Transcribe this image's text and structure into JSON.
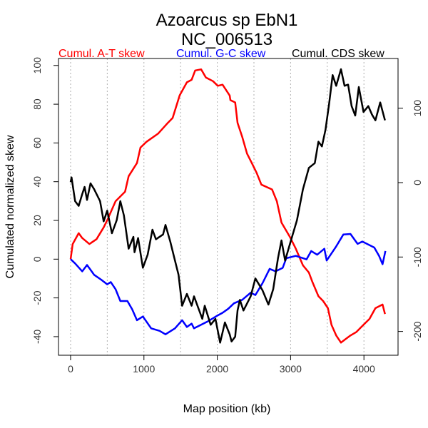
{
  "chart_data": {
    "type": "line",
    "title": "Azoarcus sp EbN1",
    "subtitle": "NC_006513",
    "xlabel": "Map position (kb)",
    "ylabel": "Cumulated normalized skew",
    "xlim": [
      -165,
      4465
    ],
    "ylim": [
      -49.6,
      103.6
    ],
    "ylim_right": [
      -232,
      166.8
    ],
    "x_ticks": [
      0,
      1000,
      2000,
      3000,
      4000
    ],
    "y_ticks": [
      -40,
      -20,
      0,
      20,
      40,
      60,
      80,
      100
    ],
    "y_ticks_right": [
      -200,
      -100,
      0,
      100
    ],
    "grid_x": [
      0,
      500,
      1000,
      1500,
      2000,
      2500,
      3000,
      3500,
      4000
    ],
    "legend_placement": "top",
    "series": [
      {
        "name": "Cumul. A-T skew",
        "color": "#ff0000",
        "axis": "left",
        "x": [
          0,
          29,
          110,
          159,
          256,
          353,
          451,
          499,
          613,
          743,
          791,
          905,
          953,
          1034,
          1196,
          1326,
          1391,
          1488,
          1586,
          1650,
          1699,
          1780,
          1845,
          1942,
          2007,
          2072,
          2169,
          2179,
          2244,
          2276,
          2341,
          2406,
          2471,
          2536,
          2601,
          2747,
          2812,
          2876,
          2990,
          3071,
          3168,
          3249,
          3298,
          3379,
          3444,
          3509,
          3557,
          3622,
          3687,
          3751,
          3816,
          3897,
          3978,
          4076,
          4157,
          4254,
          4287
        ],
        "y": [
          0,
          7.8,
          13.4,
          10.9,
          7.8,
          10.3,
          16.4,
          20.1,
          29.9,
          34.8,
          42.8,
          49.6,
          57.6,
          60.6,
          64.9,
          70.4,
          72.9,
          84.6,
          91.3,
          92.6,
          97.4,
          98.0,
          93.8,
          91.9,
          89.5,
          90.1,
          84.5,
          82.1,
          80.9,
          70.4,
          63.1,
          54.5,
          49.6,
          44.6,
          38.5,
          36.0,
          29.9,
          18.9,
          11.5,
          5.4,
          -3.2,
          -6.9,
          -11.8,
          -19.1,
          -21.6,
          -25.3,
          -33.9,
          -39.4,
          -43.1,
          -41.2,
          -39.4,
          -37.6,
          -34.5,
          -30.8,
          -25.3,
          -23.4,
          -28.3
        ]
      },
      {
        "name": "Cumul. G-C skew",
        "color": "#0000ff",
        "axis": "left",
        "x": [
          0,
          62,
          159,
          224,
          321,
          418,
          499,
          548,
          613,
          678,
          775,
          840,
          905,
          986,
          1099,
          1213,
          1294,
          1423,
          1521,
          1586,
          1650,
          1683,
          1877,
          2007,
          2072,
          2150,
          2228,
          2341,
          2455,
          2520,
          2617,
          2714,
          2795,
          2892,
          2941,
          3071,
          3217,
          3281,
          3362,
          3460,
          3492,
          3622,
          3719,
          3816,
          3913,
          3978,
          4141,
          4206,
          4254,
          4293
        ],
        "y": [
          0,
          -2.2,
          -6.3,
          -3.0,
          -8.1,
          -10.6,
          -13.0,
          -11.8,
          -15.5,
          -21.6,
          -21.6,
          -25.9,
          -31.5,
          -29.6,
          -35.7,
          -37.0,
          -38.8,
          -35.7,
          -31.5,
          -35.0,
          -33.3,
          -35.7,
          -32.0,
          -29.0,
          -27.7,
          -25.6,
          -22.8,
          -21.0,
          -17.3,
          -18.5,
          -12.4,
          -5.0,
          -6.3,
          -4.5,
          0.5,
          1.7,
          -0.1,
          4.2,
          2.3,
          5.4,
          -0.7,
          6.6,
          12.7,
          13.0,
          7.9,
          9.1,
          6.0,
          1.7,
          -2.6,
          4.2
        ]
      },
      {
        "name": "Cumul. CDS skew",
        "color": "#000000",
        "axis": "right",
        "x": [
          0,
          13,
          62,
          110,
          159,
          191,
          224,
          272,
          321,
          402,
          451,
          499,
          564,
          629,
          678,
          727,
          791,
          856,
          872,
          921,
          986,
          1051,
          1116,
          1164,
          1261,
          1294,
          1359,
          1423,
          1472,
          1521,
          1586,
          1650,
          1683,
          1796,
          1829,
          1910,
          1975,
          2039,
          2104,
          2169,
          2195,
          2244,
          2276,
          2309,
          2357,
          2455,
          2520,
          2617,
          2698,
          2763,
          2828,
          2876,
          2925,
          2990,
          3087,
          3168,
          3249,
          3330,
          3379,
          3427,
          3476,
          3525,
          3573,
          3622,
          3687,
          3735,
          3784,
          3832,
          3881,
          3930,
          3994,
          4059,
          4108,
          4157,
          4222,
          4287
        ],
        "y": [
          0.6,
          7.0,
          -24.9,
          -31.3,
          -15.3,
          -5.8,
          -23.3,
          -1.0,
          -8.9,
          -24.9,
          -52.1,
          -37.7,
          -68.1,
          -50.5,
          -24.9,
          -44.1,
          -88.8,
          -72.9,
          -93.6,
          -74.5,
          -114.5,
          -96.8,
          -63.3,
          -76.1,
          -69.7,
          -56.9,
          -79.3,
          -104.8,
          -124.0,
          -165.5,
          -149.6,
          -165.5,
          -152.8,
          -183.1,
          -165.5,
          -191.1,
          -183.1,
          -215.1,
          -187.9,
          -203.9,
          -213.5,
          -207.1,
          -171.9,
          -157.6,
          -171.9,
          -152.8,
          -128.8,
          -144.8,
          -163.9,
          -143.2,
          -101.6,
          -77.7,
          -104.8,
          -82.5,
          -50.5,
          -8.9,
          19.8,
          26.2,
          55.0,
          48.6,
          71.0,
          106.1,
          144.5,
          130.1,
          152.4,
          130.1,
          131.7,
          102.9,
          90.1,
          128.5,
          94.9,
          102.9,
          91.7,
          83.7,
          107.7,
          83.7
        ]
      }
    ]
  }
}
